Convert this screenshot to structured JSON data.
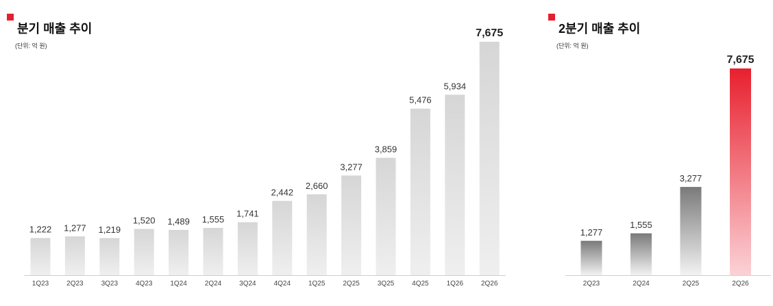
{
  "chart_data": [
    {
      "type": "bar",
      "title": "분기 매출 추이",
      "unit_label": "(단위: 억 원)",
      "categories": [
        "1Q23",
        "2Q23",
        "3Q23",
        "4Q23",
        "1Q24",
        "2Q24",
        "3Q24",
        "4Q24",
        "1Q25",
        "2Q25",
        "3Q25",
        "4Q25",
        "1Q26",
        "2Q26"
      ],
      "values": [
        1222,
        1277,
        1219,
        1520,
        1489,
        1555,
        1741,
        2442,
        2660,
        3277,
        3859,
        5476,
        5934,
        7675
      ],
      "value_labels": [
        "1,222",
        "1,277",
        "1,219",
        "1,520",
        "1,489",
        "1,555",
        "1,741",
        "2,442",
        "2,660",
        "3,277",
        "3,859",
        "5,476",
        "5,934",
        "7,675"
      ],
      "ylim": [
        0,
        7675
      ],
      "grid": false,
      "legend": "none",
      "colors": {
        "bar_top": "#d6d6d6",
        "bar_bottom": "#efefef",
        "axis": "#cfcfcf"
      }
    },
    {
      "type": "bar",
      "title": "2분기 매출 추이",
      "unit_label": "(단위: 억 원)",
      "categories": [
        "2Q23",
        "2Q24",
        "2Q25",
        "2Q26"
      ],
      "values": [
        1277,
        1555,
        3277,
        7675
      ],
      "value_labels": [
        "1,277",
        "1,555",
        "3,277",
        "7,675"
      ],
      "ylim": [
        0,
        7675
      ],
      "grid": false,
      "legend": "none",
      "colors": {
        "bar_top": "#7a7a7a",
        "bar_bottom": "#f2f2f2",
        "highlight_top": "#e8202e",
        "highlight_bottom": "#fbd2d6",
        "axis": "#cfcfcf"
      }
    }
  ]
}
